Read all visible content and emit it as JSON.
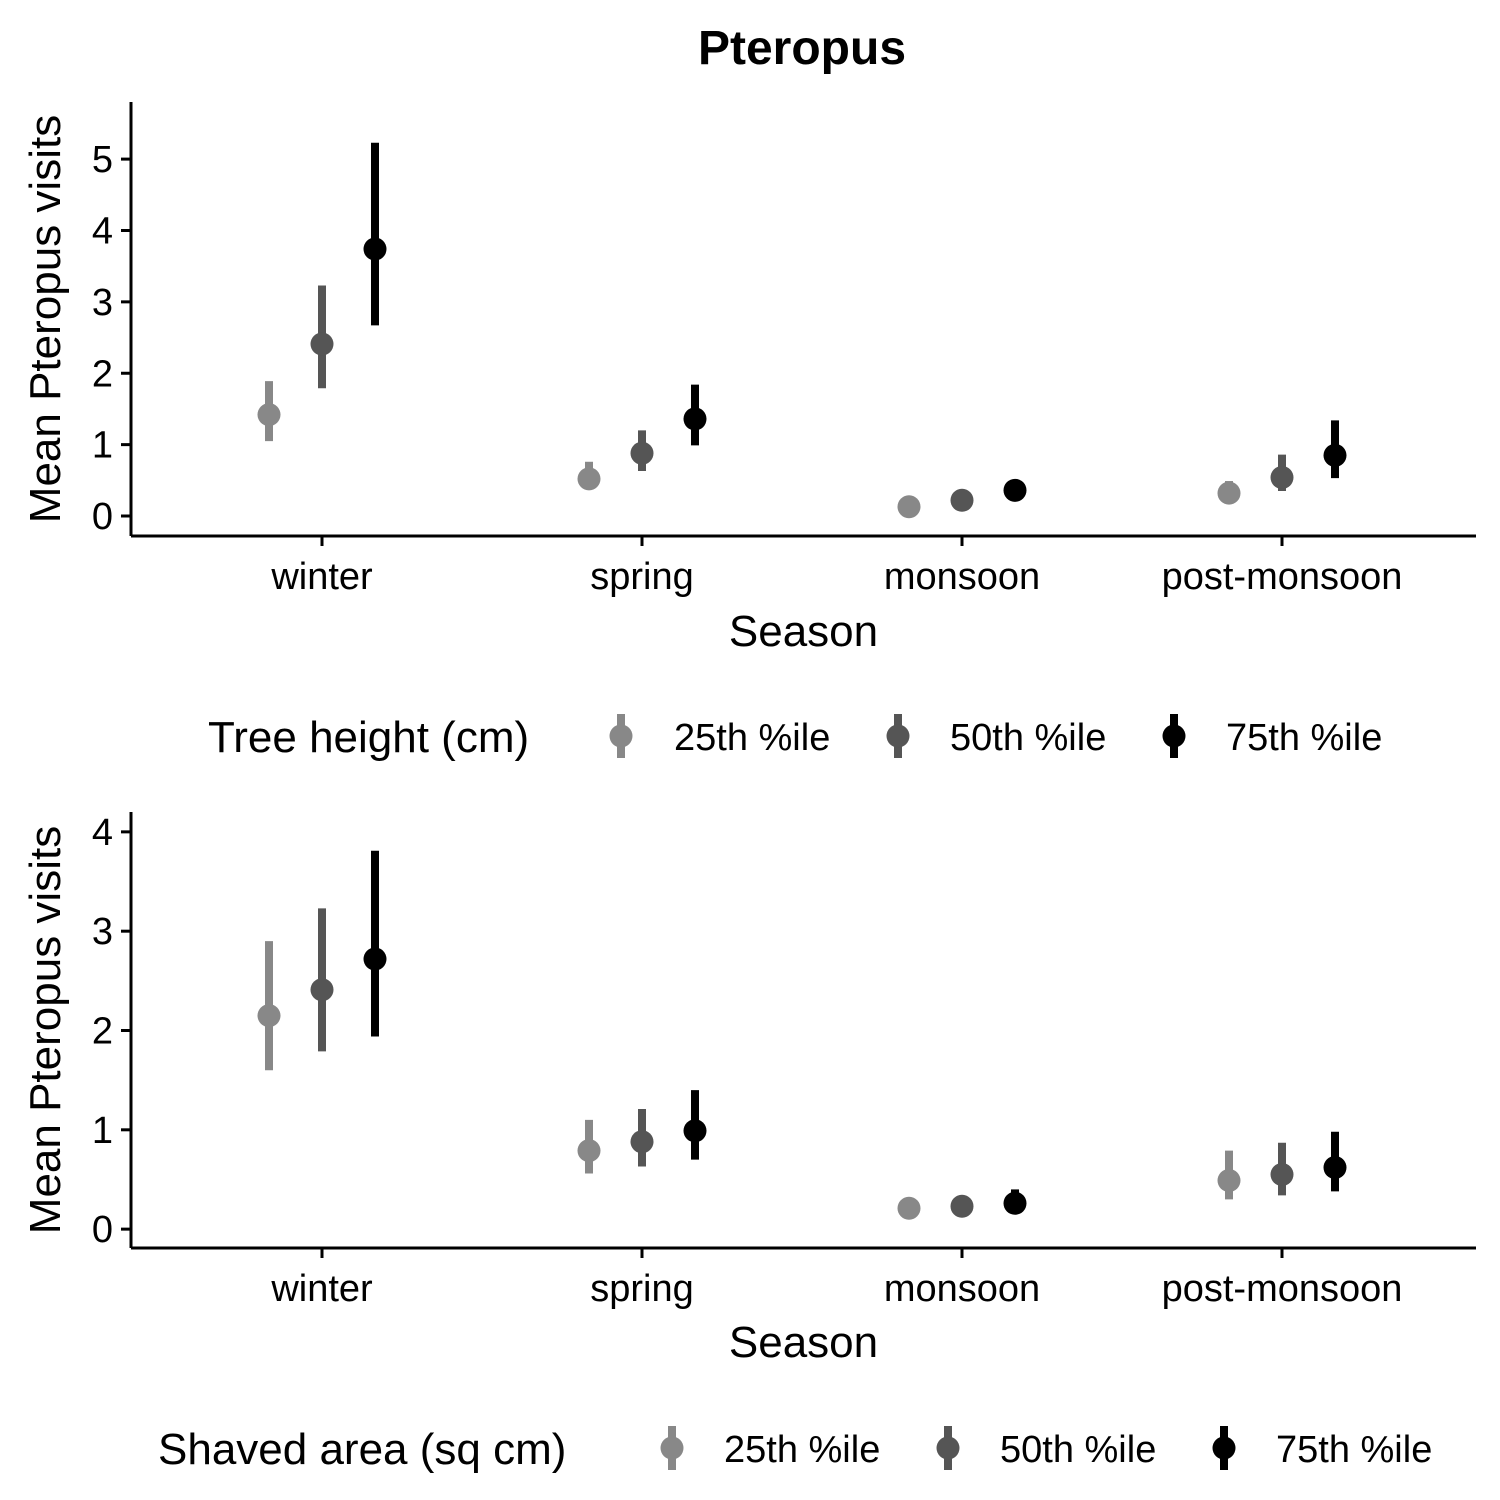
{
  "title": "Pteropus",
  "chart_data": [
    {
      "type": "pointrange",
      "xlabel": "Season",
      "ylabel": "Mean Pteropus visits",
      "categories": [
        "winter",
        "spring",
        "monsoon",
        "post-monsoon"
      ],
      "ylim": [
        -0.28,
        5.8
      ],
      "yticks": [
        0,
        1,
        2,
        3,
        4,
        5
      ],
      "grid": false,
      "legend": {
        "title": "Tree height (cm)",
        "position": "bottom",
        "entries": [
          "25th %ile",
          "50th %ile",
          "75th %ile"
        ]
      },
      "series": [
        {
          "name": "25th %ile",
          "color": "#888888",
          "values": [
            1.42,
            0.52,
            0.13,
            0.32
          ],
          "lower": [
            1.05,
            0.38,
            0.09,
            0.22
          ],
          "upper": [
            1.89,
            0.76,
            0.18,
            0.49
          ]
        },
        {
          "name": "50th %ile",
          "color": "#555555",
          "values": [
            2.41,
            0.88,
            0.22,
            0.54
          ],
          "lower": [
            1.79,
            0.63,
            0.16,
            0.35
          ],
          "upper": [
            3.23,
            1.2,
            0.29,
            0.86
          ]
        },
        {
          "name": "75th %ile",
          "color": "#000000",
          "values": [
            3.74,
            1.36,
            0.36,
            0.85
          ],
          "lower": [
            2.67,
            0.99,
            0.27,
            0.53
          ],
          "upper": [
            5.23,
            1.84,
            0.48,
            1.34
          ]
        }
      ]
    },
    {
      "type": "pointrange",
      "xlabel": "Season",
      "ylabel": "Mean Pteropus visits",
      "categories": [
        "winter",
        "spring",
        "monsoon",
        "post-monsoon"
      ],
      "ylim": [
        -0.19,
        4.2
      ],
      "yticks": [
        0,
        1,
        2,
        3,
        4
      ],
      "grid": false,
      "legend": {
        "title": "Shaved area (sq cm)",
        "position": "bottom",
        "entries": [
          "25th %ile",
          "50th %ile",
          "75th %ile"
        ]
      },
      "series": [
        {
          "name": "25th %ile",
          "color": "#888888",
          "values": [
            2.15,
            0.79,
            0.21,
            0.49
          ],
          "lower": [
            1.6,
            0.56,
            0.15,
            0.3
          ],
          "upper": [
            2.9,
            1.1,
            0.28,
            0.79
          ]
        },
        {
          "name": "50th %ile",
          "color": "#555555",
          "values": [
            2.41,
            0.88,
            0.23,
            0.55
          ],
          "lower": [
            1.79,
            0.63,
            0.16,
            0.34
          ],
          "upper": [
            3.23,
            1.21,
            0.31,
            0.87
          ]
        },
        {
          "name": "75th %ile",
          "color": "#000000",
          "values": [
            2.72,
            0.99,
            0.26,
            0.62
          ],
          "lower": [
            1.94,
            0.7,
            0.18,
            0.38
          ],
          "upper": [
            3.81,
            1.4,
            0.4,
            0.98
          ]
        }
      ]
    }
  ]
}
